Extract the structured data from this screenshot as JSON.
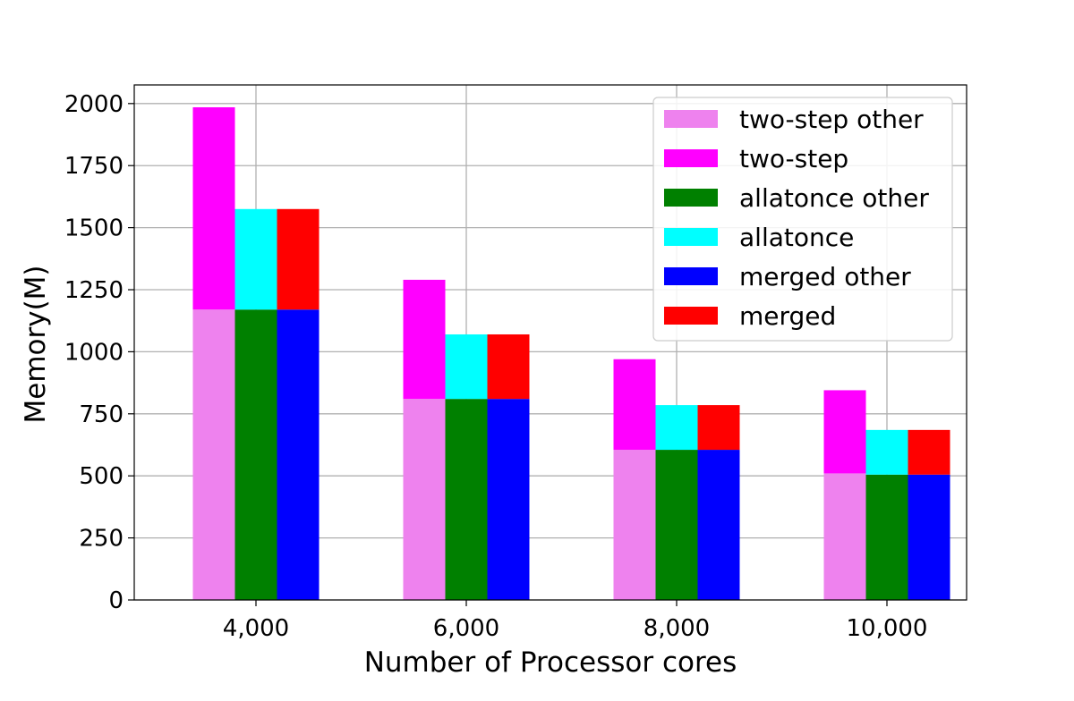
{
  "chart_data": {
    "type": "bar",
    "stacked": true,
    "xlabel": "Number of Processor cores",
    "ylabel": "Memory(M)",
    "categories": [
      "4,000",
      "6,000",
      "8,000",
      "10,000"
    ],
    "ylim": [
      0,
      2075
    ],
    "yticks": [
      0,
      250,
      500,
      750,
      1000,
      1250,
      1500,
      1750,
      2000
    ],
    "grid": true,
    "legend_position": "top-right",
    "groups": [
      {
        "name": "two-step",
        "segments": [
          {
            "series": "two-step other",
            "values": [
              1170,
              810,
              605,
              510
            ],
            "color": "#EE82EE"
          },
          {
            "series": "two-step",
            "values": [
              815,
              480,
              365,
              335
            ],
            "color": "#FF00FF"
          }
        ]
      },
      {
        "name": "allatonce",
        "segments": [
          {
            "series": "allatonce other",
            "values": [
              1170,
              810,
              605,
              505
            ],
            "color": "#008000"
          },
          {
            "series": "allatonce",
            "values": [
              405,
              260,
              180,
              180
            ],
            "color": "#00FFFF"
          }
        ]
      },
      {
        "name": "merged",
        "segments": [
          {
            "series": "merged other",
            "values": [
              1170,
              810,
              605,
              505
            ],
            "color": "#0000FF"
          },
          {
            "series": "merged",
            "values": [
              405,
              260,
              180,
              180
            ],
            "color": "#FF0000"
          }
        ]
      }
    ],
    "legend": [
      {
        "label": "two-step other",
        "color": "#EE82EE"
      },
      {
        "label": "two-step",
        "color": "#FF00FF"
      },
      {
        "label": "allatonce other",
        "color": "#008000"
      },
      {
        "label": "allatonce",
        "color": "#00FFFF"
      },
      {
        "label": "merged other",
        "color": "#0000FF"
      },
      {
        "label": "merged",
        "color": "#FF0000"
      }
    ]
  }
}
